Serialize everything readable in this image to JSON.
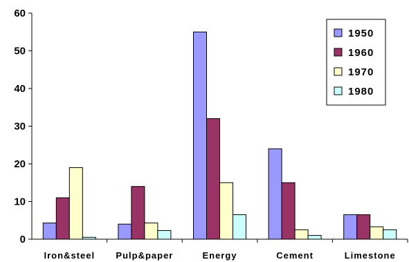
{
  "chart_data": {
    "type": "bar",
    "categories": [
      "Iron&steel",
      "Pulp&paper",
      "Energy",
      "Cement",
      "Limestone"
    ],
    "series": [
      {
        "name": "1950",
        "color": "#9999ff",
        "values": [
          4.3,
          4.0,
          55,
          24,
          6.5
        ]
      },
      {
        "name": "1960",
        "color": "#993366",
        "values": [
          11,
          14,
          32,
          15,
          6.5
        ]
      },
      {
        "name": "1970",
        "color": "#ffffcc",
        "values": [
          19,
          4.3,
          15,
          2.5,
          3.3
        ]
      },
      {
        "name": "1980",
        "color": "#ccffff",
        "values": [
          0.5,
          2.3,
          6.5,
          1.0,
          2.5
        ]
      }
    ],
    "ylim": [
      0,
      60
    ],
    "yticks": [
      0,
      10,
      20,
      30,
      40,
      50,
      60
    ],
    "grid": false,
    "legend": "top-right"
  }
}
